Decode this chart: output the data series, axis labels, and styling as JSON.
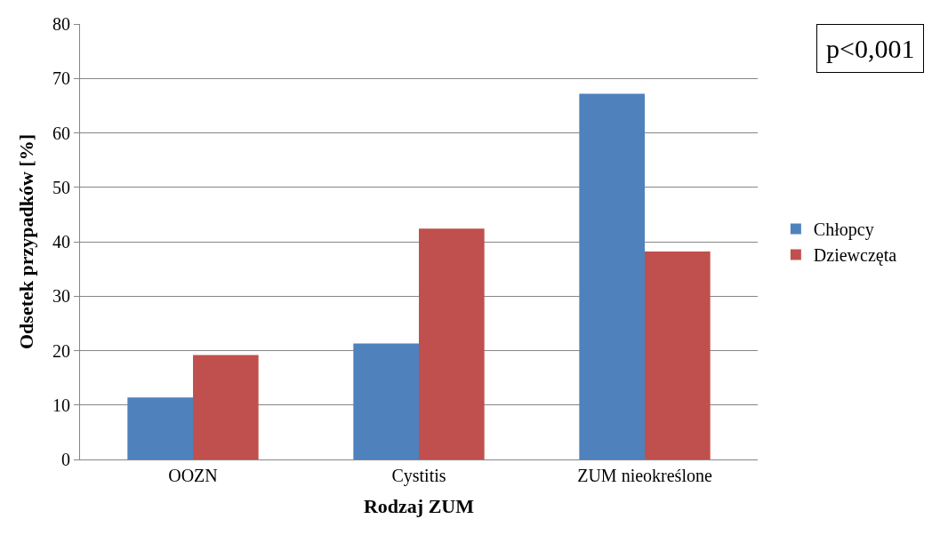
{
  "chart_data": {
    "type": "bar",
    "xlabel": "Rodzaj ZUM",
    "ylabel": "Odsetek przypadków [%]",
    "categories": [
      "OOZN",
      "Cystitis",
      "ZUM nieokreślone"
    ],
    "series": [
      {
        "name": "Chłopcy",
        "color": "#4f81bd",
        "values": [
          11.4,
          21.3,
          67.2
        ]
      },
      {
        "name": "Dziewczęta",
        "color": "#c0504d",
        "values": [
          19.2,
          42.4,
          38.2
        ]
      }
    ],
    "ylim": [
      0,
      80
    ],
    "yticks": [
      0,
      10,
      20,
      30,
      40,
      50,
      60,
      70,
      80
    ],
    "grid": "y",
    "legend": "right",
    "annotations": [
      "p<0,001"
    ]
  }
}
